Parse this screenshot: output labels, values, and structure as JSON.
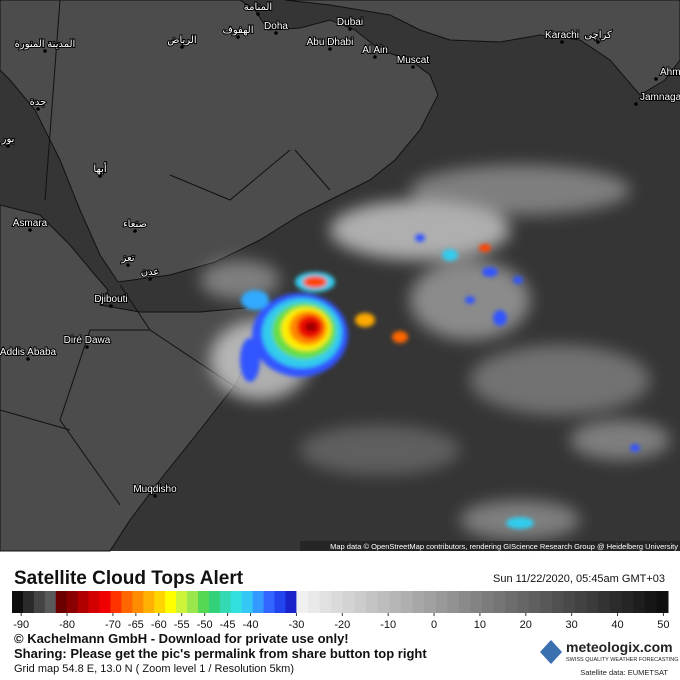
{
  "map": {
    "labels": [
      "المنامة",
      "Doha",
      "Dubai",
      "الهفوف",
      "الرياض",
      "المدينة المنورة",
      "Abu Dhabi",
      "Al Ain",
      "Muscat",
      "Karachi",
      "كراچى",
      "Ahm",
      "Jamnaga",
      "جدة",
      "بور",
      "أبها",
      "Asmara",
      "صنعاء",
      "تعز",
      "عدن",
      "Djibouti",
      "Diré Dawa",
      "Addis Ababa",
      "Muqdisho"
    ],
    "attribution": "Map data © OpenStreetMap contributors, rendering GIScience Research Group @ Heidelberg University"
  },
  "legend": {
    "title": "Satellite Cloud Tops Alert",
    "timestamp": "Sun 11/22/2020, 05:45am GMT+03",
    "lim": [
      -92,
      51
    ],
    "ticks": [
      -90,
      -80,
      -70,
      -65,
      -60,
      -55,
      -50,
      -45,
      -40,
      -30,
      -20,
      -10,
      0,
      10,
      20,
      30,
      40,
      50
    ],
    "copyright": "© Kachelmann GmbH - Download for private use only!",
    "sharing": "Sharing: Please get the pic's permalink from share button top right",
    "grid_info": "Grid map 54.8 E, 13.0 N ( Zoom level 1 / Resolution 5km)",
    "brand": "meteologix.com",
    "brand_tagline": "SWISS QUALITY WEATHER FORECASTING",
    "source": "Satellite data: EUMETSAT"
  }
}
